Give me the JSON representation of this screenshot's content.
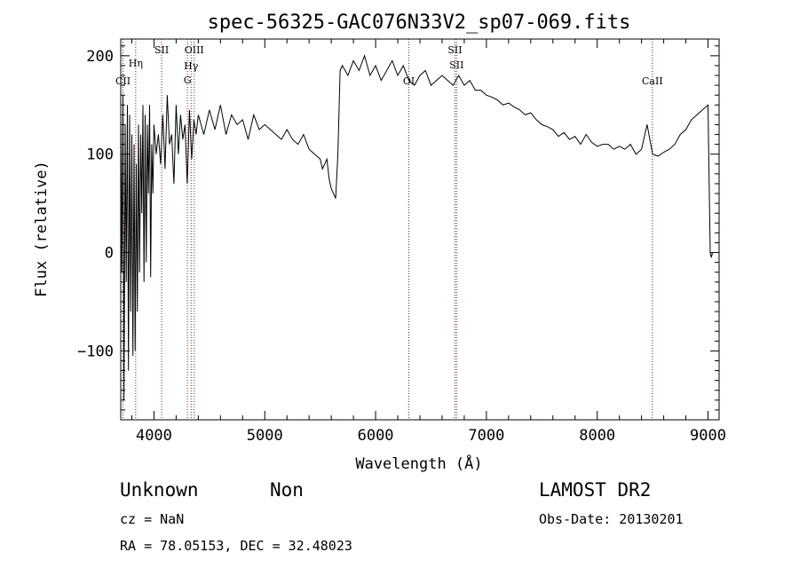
{
  "chart_data": {
    "type": "line",
    "title": "spec-56325-GAC076N33V2_sp07-069.fits",
    "xlabel": "Wavelength (Å)",
    "ylabel": "Flux (relative)",
    "xlim": [
      3700,
      9100
    ],
    "ylim": [
      -170,
      217
    ],
    "xticks": [
      4000,
      5000,
      6000,
      7000,
      8000,
      9000
    ],
    "yticks": [
      -100,
      0,
      100,
      200
    ],
    "grid": false,
    "series": [
      {
        "x": [
          3700,
          3710,
          3720,
          3730,
          3740,
          3750,
          3760,
          3770,
          3780,
          3790,
          3800,
          3810,
          3820,
          3830,
          3840,
          3850,
          3860,
          3870,
          3880,
          3890,
          3900,
          3910,
          3920,
          3930,
          3940,
          3950,
          3960,
          3970,
          3980,
          3990,
          4000,
          4020,
          4040,
          4060,
          4080,
          4100,
          4120,
          4140,
          4160,
          4180,
          4200,
          4220,
          4240,
          4260,
          4280,
          4300,
          4320,
          4340,
          4360,
          4380,
          4400,
          4450,
          4500,
          4550,
          4600,
          4650,
          4700,
          4750,
          4800,
          4850,
          4900,
          4950,
          5000,
          5050,
          5100,
          5150,
          5200,
          5250,
          5300,
          5350,
          5400,
          5450,
          5500,
          5520,
          5540,
          5560,
          5580,
          5600,
          5620,
          5640,
          5660,
          5680,
          5700,
          5750,
          5800,
          5850,
          5900,
          5950,
          6000,
          6050,
          6100,
          6150,
          6200,
          6250,
          6300,
          6350,
          6400,
          6450,
          6500,
          6550,
          6600,
          6650,
          6700,
          6750,
          6800,
          6850,
          6900,
          6950,
          7000,
          7050,
          7100,
          7150,
          7200,
          7250,
          7300,
          7350,
          7400,
          7450,
          7500,
          7550,
          7600,
          7650,
          7700,
          7750,
          7800,
          7850,
          7900,
          7950,
          8000,
          8050,
          8100,
          8150,
          8200,
          8250,
          8300,
          8350,
          8400,
          8450,
          8500,
          8550,
          8600,
          8650,
          8700,
          8750,
          8800,
          8850,
          8900,
          8950,
          9000,
          9020,
          9030,
          9040
        ],
        "y": [
          140,
          -20,
          160,
          -150,
          130,
          -30,
          150,
          -120,
          140,
          -60,
          120,
          -105,
          110,
          -100,
          90,
          -60,
          130,
          -20,
          120,
          40,
          150,
          -30,
          140,
          -10,
          130,
          60,
          150,
          -25,
          110,
          60,
          130,
          100,
          120,
          90,
          140,
          85,
          160,
          110,
          120,
          70,
          150,
          100,
          140,
          115,
          130,
          70,
          145,
          95,
          135,
          120,
          140,
          120,
          145,
          125,
          150,
          120,
          140,
          130,
          135,
          115,
          140,
          125,
          130,
          125,
          120,
          115,
          125,
          115,
          110,
          120,
          105,
          100,
          95,
          85,
          90,
          95,
          75,
          65,
          60,
          55,
          100,
          185,
          190,
          180,
          195,
          185,
          200,
          180,
          190,
          175,
          185,
          195,
          180,
          190,
          175,
          170,
          180,
          185,
          170,
          175,
          180,
          175,
          170,
          180,
          170,
          175,
          165,
          165,
          160,
          158,
          155,
          150,
          152,
          148,
          145,
          140,
          142,
          135,
          130,
          128,
          125,
          118,
          122,
          115,
          118,
          110,
          120,
          112,
          108,
          110,
          110,
          105,
          108,
          105,
          110,
          100,
          105,
          130,
          100,
          98,
          102,
          105,
          110,
          120,
          125,
          135,
          140,
          145,
          150,
          0,
          -5,
          0
        ]
      }
    ],
    "annotations": [
      "CII",
      "Hη",
      "SII",
      "OIII",
      "Hγ",
      "G",
      "OI",
      "SII",
      "SII",
      "CaII"
    ],
    "info": {
      "object_class": "Unknown",
      "object_subclass": "Non",
      "cz": "cz = NaN",
      "radec": "RA =  78.05153, DEC =  32.48023",
      "survey": "LAMOST DR2",
      "obs_date": "Obs-Date: 20130201"
    },
    "colors": {
      "spectrum": "#000000",
      "line_markers": "#7a1f1f"
    }
  }
}
